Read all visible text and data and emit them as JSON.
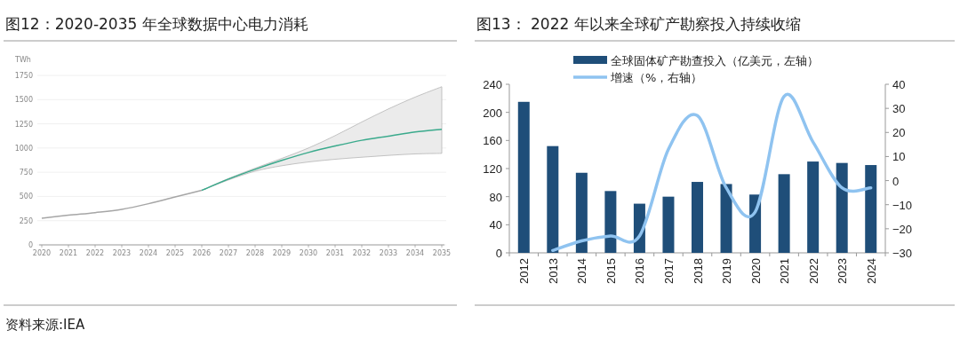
{
  "chart_data": [
    {
      "type": "line",
      "title": "图12：2020-2035 年全球数据中心电力消耗",
      "ylabel": "TWh",
      "xlim": [
        2020,
        2035
      ],
      "xticks": [
        2020,
        2021,
        2022,
        2023,
        2024,
        2025,
        2026,
        2027,
        2028,
        2029,
        2030,
        2031,
        2032,
        2033,
        2034,
        2035
      ],
      "ylim": [
        0,
        1750
      ],
      "yticks": [
        0,
        250,
        500,
        750,
        1000,
        1250,
        1500,
        1750
      ],
      "grid": "y",
      "series": [
        {
          "color": "#a6a6a6",
          "x": [
            2020,
            2021,
            2022,
            2023,
            2024,
            2025,
            2026
          ],
          "values": [
            275,
            306,
            333,
            367,
            425,
            495,
            563
          ]
        },
        {
          "color": "#3aaa8c",
          "x": [
            2026,
            2027,
            2028,
            2029,
            2030,
            2031,
            2032,
            2033,
            2034,
            2035
          ],
          "values": [
            563,
            679,
            780,
            872,
            954,
            1021,
            1080,
            1122,
            1165,
            1193
          ],
          "lower": [
            563,
            670,
            761,
            817,
            856,
            884,
            905,
            924,
            939,
            945
          ],
          "upper": [
            563,
            685,
            792,
            893,
            1000,
            1128,
            1269,
            1404,
            1526,
            1633
          ]
        }
      ],
      "annotations": [
        "资料来源:IEA"
      ]
    },
    {
      "type": "bar",
      "title": "图13：  2022 年以来全球矿产勘察投入持续收缩",
      "categories": [
        "2012",
        "2013",
        "2014",
        "2015",
        "2016",
        "2017",
        "2018",
        "2019",
        "2020",
        "2021",
        "2022",
        "2023",
        "2024"
      ],
      "ylim": [
        0,
        240
      ],
      "yticks": [
        0,
        40,
        80,
        120,
        160,
        200,
        240
      ],
      "y2lim": [
        -30,
        40
      ],
      "y2ticks": [
        -30,
        -20,
        -10,
        0,
        10,
        20,
        30,
        40
      ],
      "legend": "top",
      "series": [
        {
          "name": "全球固体矿产勘查投入（亿美元，左轴）",
          "color": "#1f4e79",
          "values": [
            215,
            152,
            114,
            88,
            70,
            80,
            101,
            98,
            83,
            112,
            130,
            128,
            125
          ]
        },
        {
          "name": "增速（%，右轴）",
          "type": "line",
          "axis": "y2",
          "color": "#8fc3f0",
          "values": [
            null,
            -29,
            -25,
            -23,
            -23,
            13,
            27,
            -3,
            -13,
            35,
            16,
            -3,
            -3
          ]
        }
      ]
    }
  ]
}
